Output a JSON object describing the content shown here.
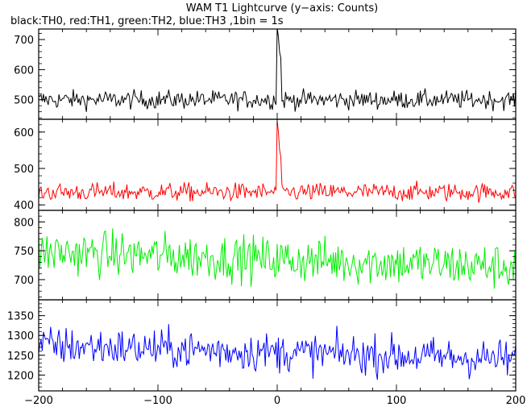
{
  "title": "WAM T1 Lightcurve (y−axis: Counts)",
  "subtitle": "black:TH0, red:TH1, green:TH2, blue:TH3 ,1bin = 1s",
  "chart_data": {
    "type": "line",
    "x_range": [
      -200,
      200
    ],
    "x_ticks": [
      -200,
      -100,
      0,
      100,
      200
    ],
    "panels": [
      {
        "name": "TH0",
        "color": "#000000",
        "ylim": [
          435,
          735
        ],
        "y_ticks": [
          500,
          600,
          700
        ],
        "baseline": 500,
        "noise": 22,
        "peak": {
          "x": 0,
          "value": 740
        },
        "decay_end": 600
      },
      {
        "name": "TH1",
        "color": "#ff0000",
        "ylim": [
          385,
          635
        ],
        "y_ticks": [
          400,
          500,
          600
        ],
        "baseline": 435,
        "noise": 18,
        "peak": {
          "x": 0,
          "value": 630
        },
        "decay_end": 480
      },
      {
        "name": "TH2",
        "color": "#00ee00",
        "ylim": [
          665,
          820
        ],
        "y_ticks": [
          700,
          750,
          800
        ],
        "baseline": 748,
        "baseline_end": 722,
        "noise": 28
      },
      {
        "name": "TH3",
        "color": "#0000ff",
        "ylim": [
          1160,
          1390
        ],
        "y_ticks": [
          1200,
          1250,
          1300,
          1350
        ],
        "baseline": 1275,
        "baseline_end": 1240,
        "noise": 35
      }
    ]
  }
}
